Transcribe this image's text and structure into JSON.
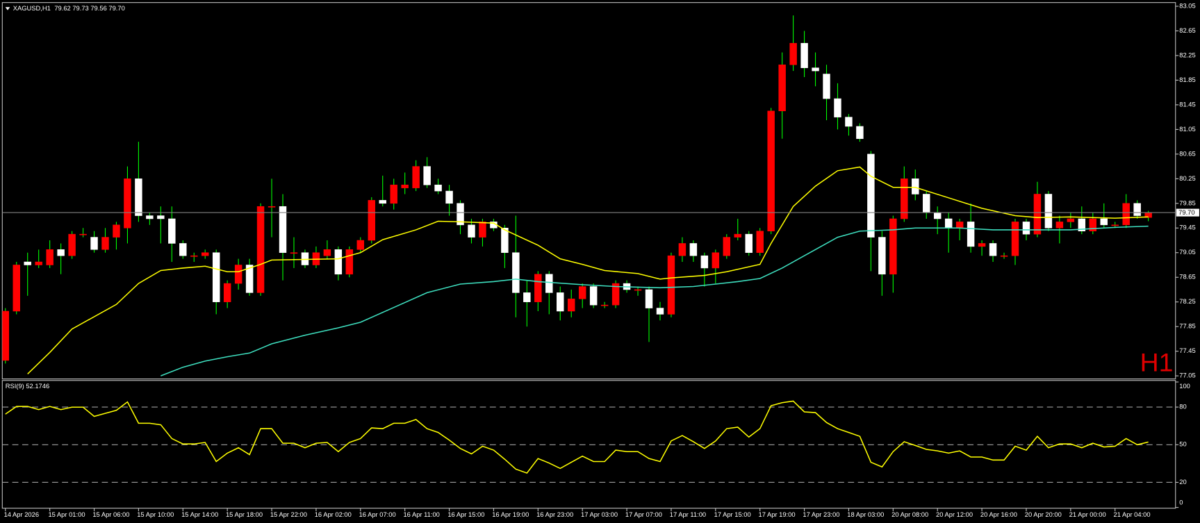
{
  "chart_data": [
    {
      "type": "candlestick",
      "symbol": "XAGUSD,H1",
      "ohlc_label": "79.62 79.73 79.56 79.70",
      "watermark": "H1",
      "last_price": 79.7,
      "last_price_label": "79.70",
      "up_color": "#ff0000",
      "down_color": "#ffffff",
      "wick_color": "#00ff00",
      "price_line_color": "#808080",
      "xlim": [
        -0.28,
        105.45
      ],
      "ylim": [
        77.0,
        83.11
      ],
      "yticks": [
        83.05,
        82.65,
        82.25,
        81.85,
        81.45,
        81.05,
        80.65,
        80.25,
        79.85,
        79.45,
        79.05,
        78.65,
        78.25,
        77.85,
        77.45,
        77.05
      ],
      "xticks": [
        {
          "value": 0,
          "label": "14 Apr 2026"
        },
        {
          "value": 4,
          "label": "15 Apr 01:00"
        },
        {
          "value": 8,
          "label": "15 Apr 06:00"
        },
        {
          "value": 12,
          "label": "15 Apr 10:00"
        },
        {
          "value": 16,
          "label": "15 Apr 14:00"
        },
        {
          "value": 20,
          "label": "15 Apr 18:00"
        },
        {
          "value": 24,
          "label": "15 Apr 22:00"
        },
        {
          "value": 28,
          "label": "16 Apr 02:00"
        },
        {
          "value": 32,
          "label": "16 Apr 07:00"
        },
        {
          "value": 36,
          "label": "16 Apr 11:00"
        },
        {
          "value": 40,
          "label": "16 Apr 15:00"
        },
        {
          "value": 44,
          "label": "16 Apr 19:00"
        },
        {
          "value": 48,
          "label": "16 Apr 23:00"
        },
        {
          "value": 52,
          "label": "17 Apr 03:00"
        },
        {
          "value": 56,
          "label": "17 Apr 07:00"
        },
        {
          "value": 60,
          "label": "17 Apr 11:00"
        },
        {
          "value": 64,
          "label": "17 Apr 15:00"
        },
        {
          "value": 68,
          "label": "17 Apr 19:00"
        },
        {
          "value": 72,
          "label": "17 Apr 23:00"
        },
        {
          "value": 76,
          "label": "18 Apr 03:00"
        },
        {
          "value": 80,
          "label": "20 Apr 08:00"
        },
        {
          "value": 84,
          "label": "20 Apr 12:00"
        },
        {
          "value": 88,
          "label": "20 Apr 16:00"
        },
        {
          "value": 92,
          "label": "20 Apr 20:00"
        },
        {
          "value": 96,
          "label": "21 Apr 00:00"
        },
        {
          "value": 100,
          "label": "21 Apr 04:00"
        }
      ],
      "open": [
        77.3,
        78.1,
        78.9,
        78.85,
        78.85,
        79.1,
        79.0,
        79.35,
        79.3,
        79.1,
        79.3,
        79.45,
        80.25,
        79.65,
        79.65,
        79.6,
        79.2,
        79.0,
        79.0,
        79.05,
        78.25,
        78.55,
        78.85,
        78.4,
        79.8,
        79.8,
        79.05,
        79.05,
        78.85,
        79.0,
        79.1,
        78.7,
        79.1,
        79.25,
        79.9,
        79.85,
        80.1,
        80.1,
        80.45,
        80.15,
        80.05,
        79.85,
        79.5,
        79.3,
        79.55,
        79.45,
        79.05,
        78.4,
        78.25,
        78.7,
        78.4,
        78.1,
        78.3,
        78.5,
        78.2,
        78.2,
        78.55,
        78.45,
        78.45,
        78.15,
        78.05,
        79.0,
        79.2,
        79.0,
        78.8,
        79.0,
        79.3,
        79.35,
        79.05,
        79.4,
        81.35,
        82.1,
        82.45,
        82.05,
        81.95,
        81.55,
        81.25,
        81.1,
        80.65,
        79.3,
        78.7,
        79.6,
        80.25,
        80.0,
        79.7,
        79.6,
        79.45,
        79.55,
        79.15,
        79.2,
        79.0,
        79.0,
        79.55,
        79.35,
        80.0,
        79.45,
        79.55,
        79.6,
        79.4,
        79.6,
        79.5,
        79.5,
        79.85,
        79.62
      ],
      "high": [
        78.15,
        78.9,
        79.05,
        79.1,
        79.25,
        79.2,
        79.4,
        79.45,
        79.4,
        79.45,
        79.55,
        80.45,
        80.85,
        79.7,
        79.8,
        79.8,
        79.25,
        79.05,
        79.1,
        79.1,
        78.6,
        78.95,
        78.95,
        79.85,
        80.25,
        80.0,
        79.3,
        79.1,
        79.15,
        79.25,
        79.15,
        79.15,
        79.3,
        79.95,
        80.3,
        80.25,
        80.35,
        80.55,
        80.6,
        80.25,
        80.15,
        79.9,
        79.6,
        79.6,
        79.6,
        79.5,
        79.65,
        78.6,
        78.75,
        78.75,
        78.5,
        78.45,
        78.55,
        78.55,
        78.25,
        78.6,
        78.6,
        78.5,
        78.5,
        78.25,
        79.05,
        79.3,
        79.25,
        79.05,
        79.1,
        79.35,
        79.6,
        79.4,
        79.45,
        81.4,
        82.3,
        82.9,
        82.65,
        82.3,
        82.1,
        81.8,
        81.3,
        81.15,
        80.7,
        79.4,
        79.65,
        80.45,
        80.4,
        80.05,
        79.8,
        79.7,
        79.6,
        79.85,
        79.25,
        79.25,
        79.05,
        79.6,
        79.6,
        80.2,
        80.05,
        79.65,
        79.7,
        79.8,
        79.7,
        79.85,
        79.55,
        80.0,
        79.9,
        79.73
      ],
      "low": [
        77.25,
        78.05,
        78.35,
        78.8,
        78.8,
        78.7,
        78.95,
        79.3,
        79.05,
        79.05,
        79.1,
        79.2,
        79.55,
        79.5,
        79.2,
        78.9,
        78.95,
        78.9,
        78.95,
        78.05,
        78.15,
        78.45,
        78.35,
        78.35,
        79.3,
        78.6,
        78.8,
        78.8,
        78.8,
        78.95,
        78.6,
        78.65,
        79.05,
        79.2,
        79.8,
        79.75,
        80.0,
        80.05,
        80.1,
        80.0,
        79.65,
        79.35,
        79.2,
        79.15,
        79.4,
        78.8,
        78.0,
        77.85,
        78.1,
        78.05,
        77.95,
        78.0,
        78.15,
        78.15,
        78.15,
        78.15,
        78.4,
        78.35,
        77.6,
        77.95,
        78.0,
        78.9,
        78.9,
        78.5,
        78.55,
        78.95,
        79.25,
        79.0,
        79.0,
        79.35,
        80.9,
        82.0,
        81.9,
        81.75,
        81.2,
        81.05,
        80.95,
        80.85,
        78.75,
        78.35,
        78.4,
        79.55,
        79.9,
        79.6,
        79.35,
        79.05,
        79.25,
        79.05,
        79.0,
        78.9,
        78.95,
        78.85,
        79.25,
        79.3,
        79.4,
        79.2,
        79.45,
        79.35,
        79.35,
        79.45,
        79.45,
        79.45,
        79.6,
        79.56
      ],
      "close": [
        78.1,
        78.85,
        78.85,
        78.9,
        79.1,
        79.0,
        79.35,
        79.35,
        79.1,
        79.3,
        79.5,
        80.25,
        79.65,
        79.6,
        79.6,
        79.2,
        79.0,
        79.0,
        79.05,
        78.25,
        78.55,
        78.85,
        78.4,
        79.8,
        79.8,
        79.05,
        79.05,
        78.85,
        79.05,
        79.1,
        78.7,
        79.1,
        79.25,
        79.9,
        79.85,
        80.15,
        80.15,
        80.45,
        80.15,
        80.05,
        79.85,
        79.5,
        79.3,
        79.55,
        79.45,
        79.05,
        78.4,
        78.25,
        78.7,
        78.4,
        78.1,
        78.3,
        78.5,
        78.2,
        78.2,
        78.55,
        78.45,
        78.45,
        78.15,
        78.05,
        79.0,
        79.2,
        79.0,
        78.8,
        79.05,
        79.3,
        79.35,
        79.05,
        79.4,
        81.35,
        82.1,
        82.45,
        82.05,
        82.0,
        81.55,
        81.25,
        81.1,
        80.9,
        79.3,
        78.7,
        79.6,
        80.25,
        80.0,
        79.7,
        79.6,
        79.45,
        79.55,
        79.15,
        79.2,
        79.0,
        79.0,
        79.55,
        79.35,
        80.0,
        79.45,
        79.55,
        79.6,
        79.4,
        79.6,
        79.5,
        79.5,
        79.85,
        79.65,
        79.7
      ],
      "series": [
        {
          "color": "#ffff00",
          "x": [
            2,
            4,
            6,
            10,
            12,
            14,
            16,
            18,
            20,
            21,
            23,
            24,
            27,
            30,
            32,
            34,
            37,
            39,
            41,
            44,
            45,
            48,
            50,
            52,
            54,
            57,
            59,
            60,
            63,
            65,
            68,
            69,
            71,
            73,
            75,
            77,
            78,
            80,
            82,
            85,
            88,
            91,
            93,
            96,
            100,
            103
          ],
          "values": [
            77.08,
            77.43,
            77.81,
            78.21,
            78.55,
            78.76,
            78.8,
            78.83,
            78.74,
            78.74,
            78.86,
            78.93,
            78.94,
            78.95,
            79.05,
            79.26,
            79.42,
            79.56,
            79.55,
            79.53,
            79.42,
            79.17,
            78.95,
            78.86,
            78.76,
            78.71,
            78.62,
            78.64,
            78.68,
            78.74,
            78.86,
            79.2,
            79.8,
            80.13,
            80.38,
            80.44,
            80.29,
            80.11,
            80.11,
            79.94,
            79.77,
            79.65,
            79.62,
            79.63,
            79.61,
            79.63
          ]
        },
        {
          "color": "#3ee0c0",
          "x": [
            14,
            16,
            18,
            20,
            22,
            24,
            27,
            30,
            32,
            35,
            38,
            41,
            44,
            46,
            48,
            52,
            55,
            59,
            62,
            64,
            66,
            68,
            70,
            73,
            75,
            77,
            80,
            82,
            86,
            89,
            93,
            96,
            100,
            103
          ],
          "values": [
            77.05,
            77.19,
            77.29,
            77.36,
            77.42,
            77.57,
            77.71,
            77.83,
            77.92,
            78.16,
            78.4,
            78.54,
            78.58,
            78.62,
            78.58,
            78.53,
            78.5,
            78.48,
            78.5,
            78.54,
            78.58,
            78.63,
            78.8,
            79.1,
            79.3,
            79.4,
            79.42,
            79.45,
            79.45,
            79.42,
            79.42,
            79.42,
            79.46,
            79.48
          ]
        }
      ]
    },
    {
      "type": "line",
      "title": "RSI(9) 52.1746",
      "color": "#ffff00",
      "level_color": "#a0a0a0",
      "ylim": [
        0,
        100
      ],
      "yticks": [
        100,
        80,
        50,
        20,
        0
      ],
      "dashed_levels": [
        80,
        50,
        20
      ],
      "values": [
        74.4,
        80.5,
        80.5,
        78.0,
        80.5,
        78.0,
        79.9,
        79.9,
        72.6,
        75.0,
        77.4,
        84.1,
        67.1,
        67.1,
        65.9,
        54.9,
        50.6,
        50.6,
        51.8,
        36.6,
        43.3,
        47.6,
        42.1,
        62.8,
        62.8,
        51.2,
        51.2,
        47.6,
        51.2,
        51.8,
        44.5,
        51.8,
        54.9,
        63.4,
        62.8,
        67.1,
        67.1,
        70.1,
        62.8,
        59.8,
        53.7,
        47.0,
        42.7,
        48.8,
        45.7,
        38.4,
        30.5,
        27.4,
        39.0,
        35.4,
        31.1,
        36.0,
        40.9,
        36.6,
        36.6,
        45.7,
        44.5,
        44.5,
        39.0,
        36.6,
        53.0,
        57.3,
        52.4,
        47.0,
        53.0,
        62.8,
        64.0,
        56.1,
        62.8,
        81.1,
        83.5,
        84.8,
        76.2,
        75.6,
        67.7,
        62.8,
        59.8,
        56.7,
        36.0,
        32.3,
        44.5,
        52.4,
        49.4,
        46.3,
        45.1,
        43.3,
        45.1,
        40.2,
        40.2,
        37.8,
        37.8,
        48.8,
        45.7,
        56.7,
        47.6,
        50.6,
        50.6,
        47.6,
        51.2,
        48.2,
        48.8,
        54.9,
        50.0,
        52.17
      ]
    }
  ]
}
